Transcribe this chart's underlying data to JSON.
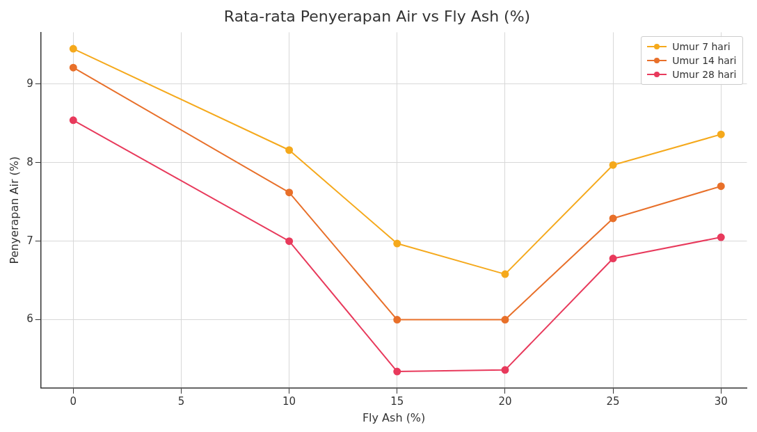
{
  "chart_data": {
    "type": "line",
    "title": "Rata-rata Penyerapan Air vs Fly Ash (%)",
    "xlabel": "Fly Ash (%)",
    "ylabel": "Penyerapan Air (%)",
    "x": [
      0,
      10,
      15,
      20,
      25,
      30
    ],
    "series": [
      {
        "name": "Umur 7 hari",
        "color": "#f5a91c",
        "values": [
          9.45,
          8.16,
          6.97,
          6.58,
          7.97,
          8.36
        ]
      },
      {
        "name": "Umur 14 hari",
        "color": "#e8702a",
        "values": [
          9.21,
          7.62,
          6.0,
          6.0,
          7.29,
          7.7
        ]
      },
      {
        "name": "Umur 28 hari",
        "color": "#e83a5c",
        "values": [
          8.54,
          7.0,
          5.34,
          5.36,
          6.78,
          7.05
        ]
      }
    ],
    "xlim": [
      -1.5,
      31.2
    ],
    "xticks": [
      0,
      5,
      10,
      15,
      20,
      25,
      30
    ],
    "ylim": [
      5.13,
      9.66
    ],
    "yticks": [
      6,
      7,
      8,
      9
    ],
    "grid": true,
    "legend": "top right",
    "marker": "circle",
    "line_style": "solid"
  }
}
